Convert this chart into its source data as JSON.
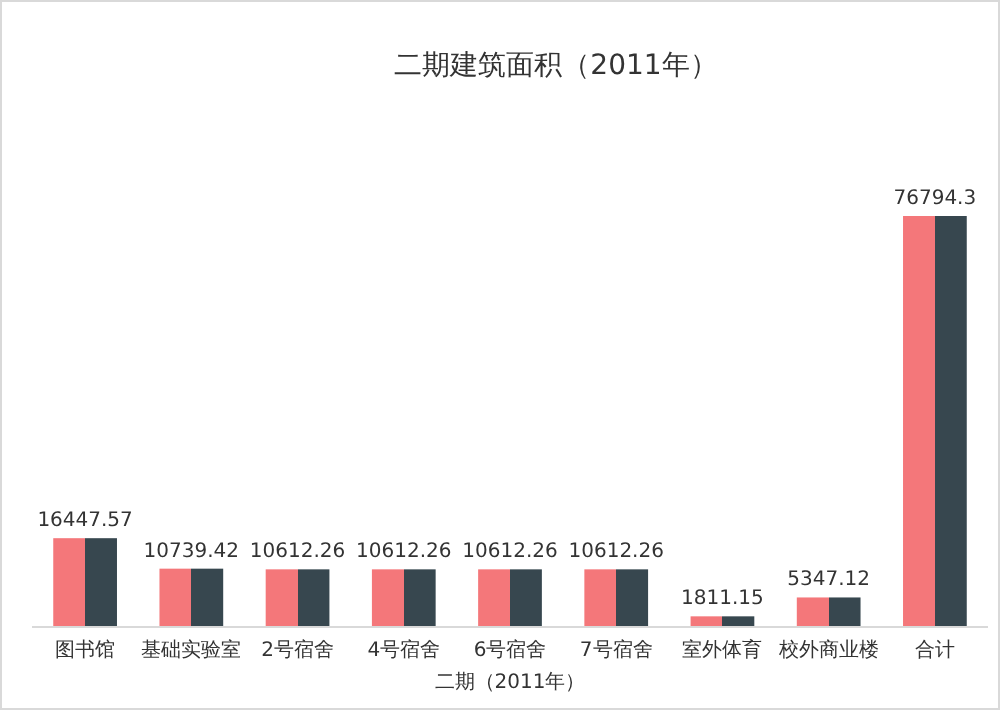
{
  "chart_data": {
    "type": "bar",
    "title": "二期建筑面积（2011年）",
    "xlabel": "二期（2011年）",
    "categories": [
      "图书馆",
      "基础实验室",
      "2号宿舍",
      "4号宿舍",
      "6号宿舍",
      "7号宿舍",
      "室外体育",
      "校外商业楼",
      "合计"
    ],
    "values": [
      16447.57,
      10739.42,
      10612.26,
      10612.26,
      10612.26,
      10612.26,
      1811.15,
      5347.12,
      76794.3
    ],
    "colors": [
      "#f4777a",
      "#f4777a",
      "#f4777a",
      "#f4777a",
      "#f4777a",
      "#f4777a",
      "#f4777a",
      "#f4777a",
      "#f4777a"
    ],
    "data_labels": true
  }
}
